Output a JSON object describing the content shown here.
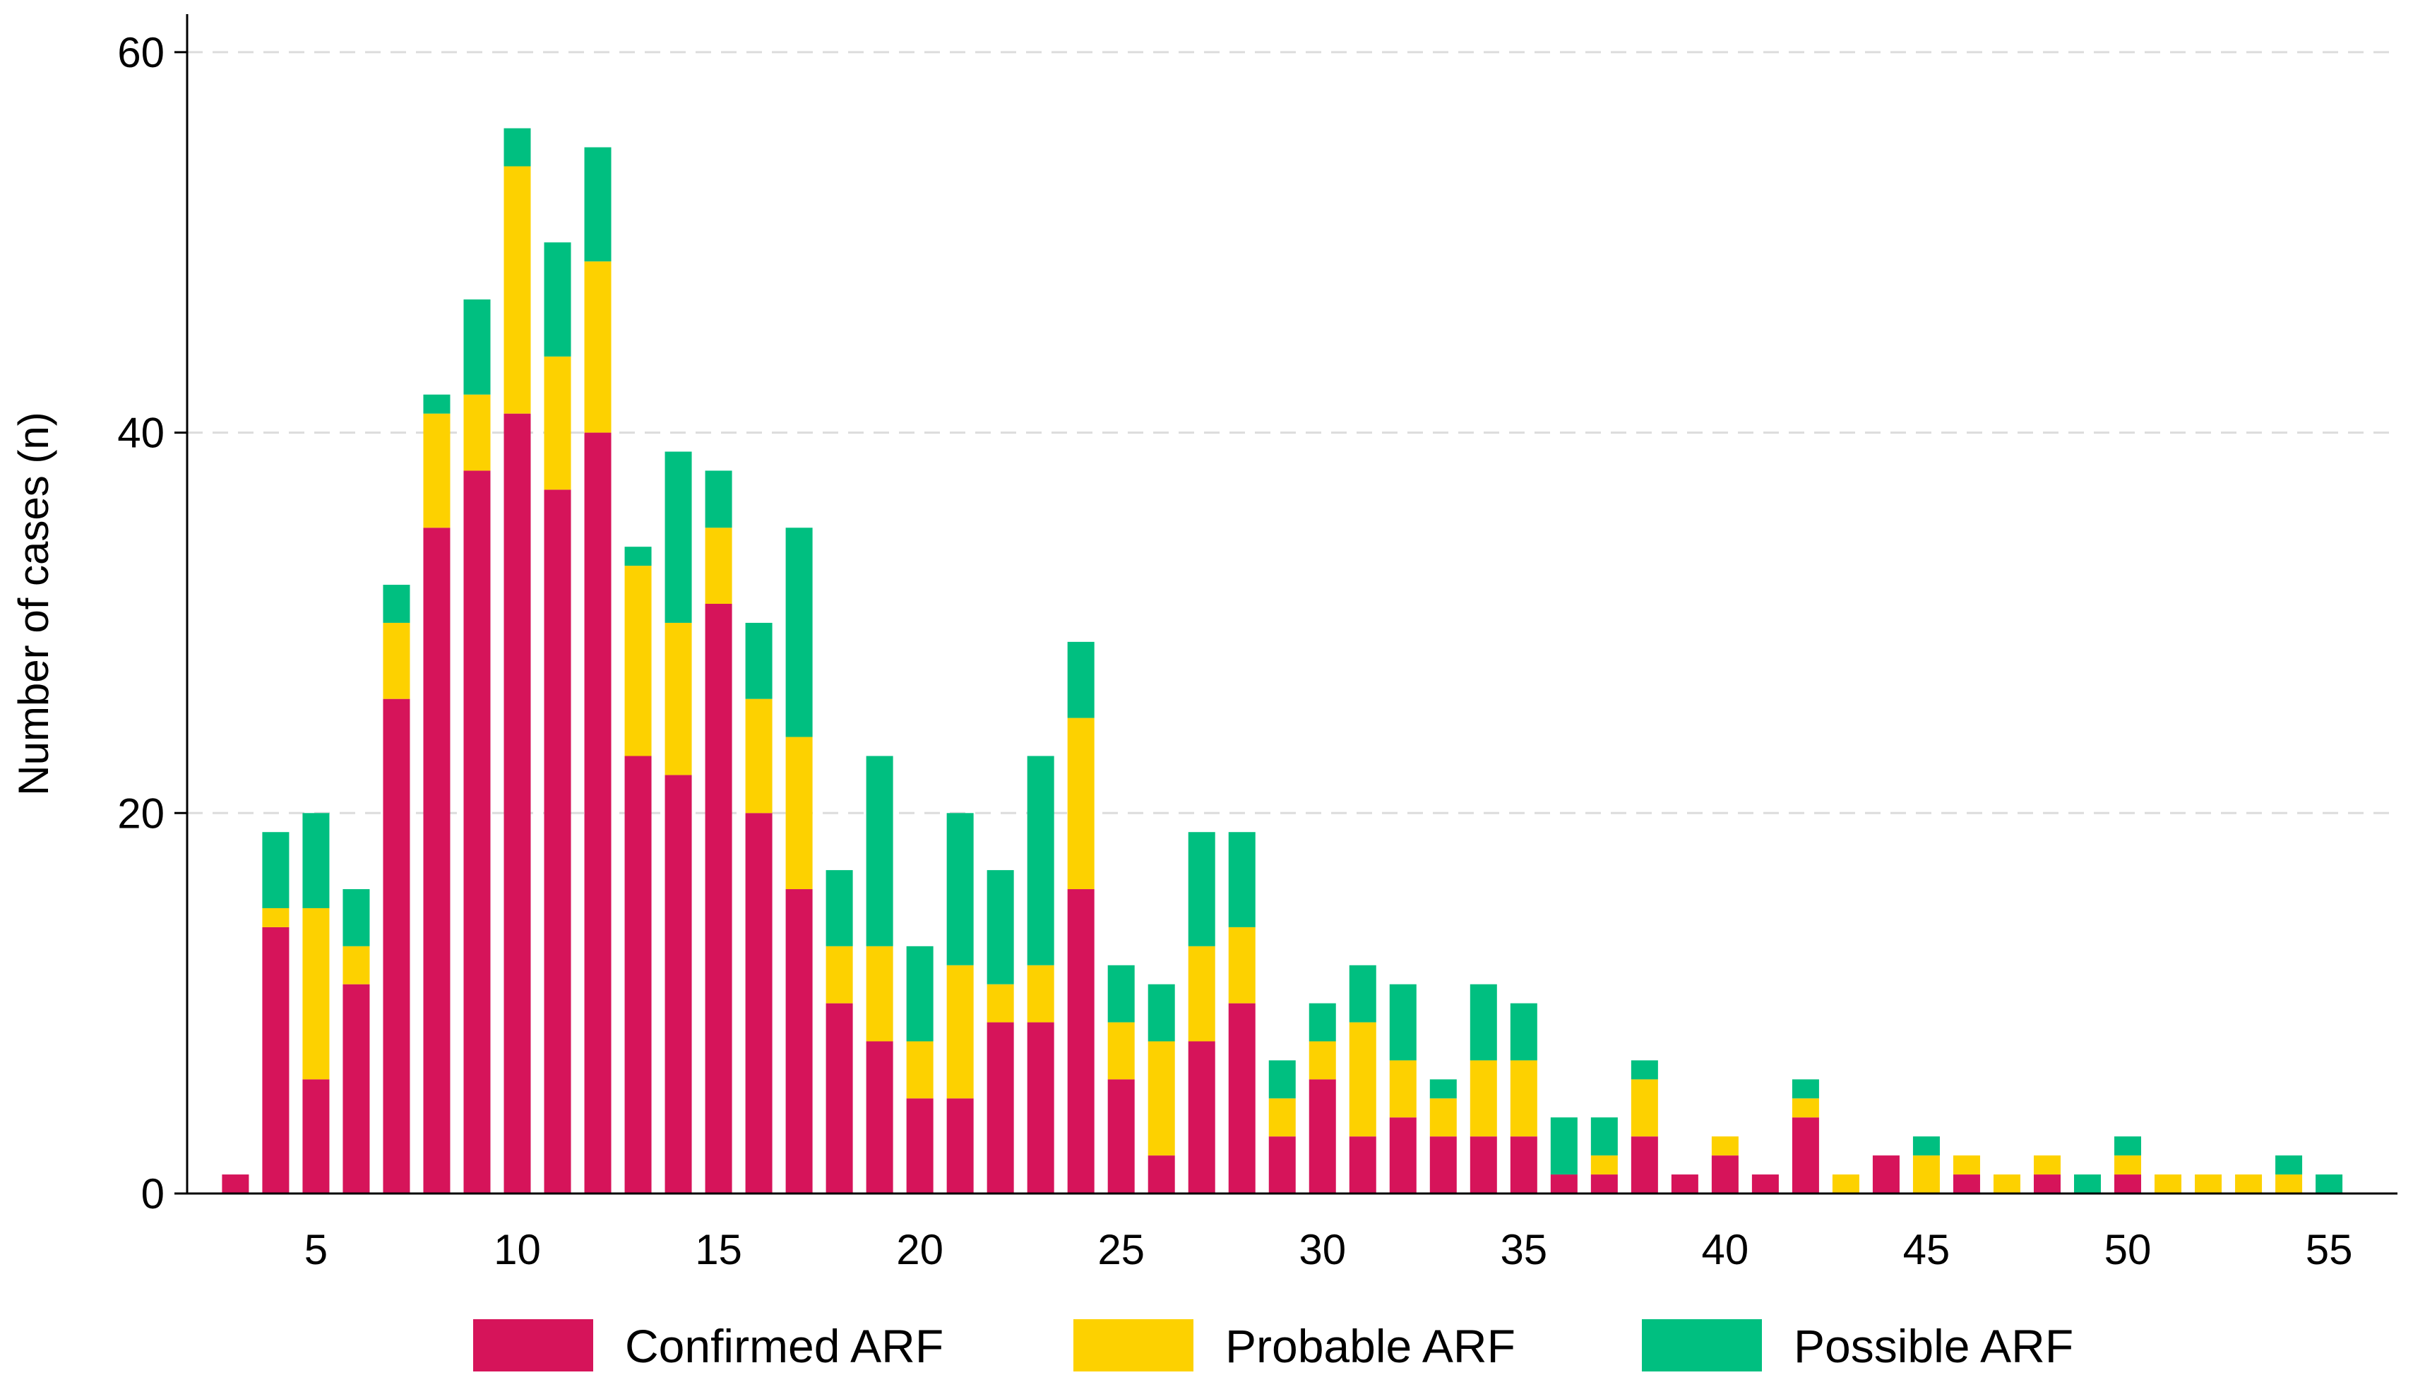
{
  "chart_data": {
    "type": "bar",
    "stacked": true,
    "title": "",
    "xlabel": "",
    "ylabel": "Number of cases (n)",
    "ylim": [
      0,
      62
    ],
    "xlim": [
      1.8,
      56.7
    ],
    "y_ticks": [
      0,
      20,
      40,
      60
    ],
    "x_ticks": [
      5,
      10,
      15,
      20,
      25,
      30,
      35,
      40,
      45,
      50,
      55
    ],
    "grid": "horizontal dashed",
    "legend_position": "bottom",
    "x": [
      3,
      4,
      5,
      6,
      7,
      8,
      9,
      10,
      11,
      12,
      13,
      14,
      15,
      16,
      17,
      18,
      19,
      20,
      21,
      22,
      23,
      24,
      25,
      26,
      27,
      28,
      29,
      30,
      31,
      32,
      33,
      34,
      35,
      36,
      37,
      38,
      39,
      40,
      41,
      42,
      43,
      44,
      45,
      46,
      47,
      48,
      49,
      50,
      51,
      52,
      53,
      54,
      55
    ],
    "series": [
      {
        "name": "Confirmed ARF",
        "color": "#D6145A",
        "values": [
          1,
          14,
          6,
          11,
          26,
          35,
          38,
          41,
          37,
          40,
          23,
          22,
          31,
          20,
          16,
          10,
          8,
          5,
          5,
          9,
          9,
          16,
          6,
          2,
          8,
          10,
          3,
          6,
          3,
          4,
          3,
          3,
          3,
          1,
          1,
          3,
          1,
          2,
          1,
          4,
          0,
          2,
          0,
          1,
          0,
          1,
          0,
          1,
          0,
          0,
          0,
          0,
          0
        ]
      },
      {
        "name": "Probable ARF",
        "color": "#FDD100",
        "values": [
          0,
          1,
          9,
          2,
          4,
          6,
          4,
          13,
          7,
          9,
          10,
          8,
          4,
          6,
          8,
          3,
          5,
          3,
          7,
          2,
          3,
          9,
          3,
          6,
          5,
          4,
          2,
          2,
          6,
          3,
          2,
          4,
          4,
          0,
          1,
          3,
          0,
          1,
          0,
          1,
          1,
          0,
          2,
          1,
          1,
          1,
          0,
          1,
          1,
          1,
          1,
          1,
          0
        ]
      },
      {
        "name": "Possible ARF",
        "color": "#00BF80",
        "values": [
          0,
          4,
          5,
          3,
          2,
          1,
          5,
          2,
          6,
          6,
          1,
          9,
          3,
          4,
          11,
          4,
          10,
          5,
          8,
          6,
          11,
          4,
          3,
          3,
          6,
          5,
          2,
          2,
          3,
          4,
          1,
          4,
          3,
          3,
          2,
          1,
          0,
          0,
          0,
          1,
          0,
          0,
          1,
          0,
          0,
          0,
          1,
          1,
          0,
          0,
          0,
          1,
          1
        ]
      }
    ]
  }
}
